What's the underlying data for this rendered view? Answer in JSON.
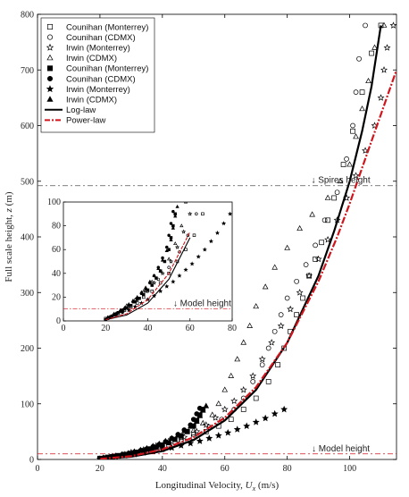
{
  "chart_data": {
    "type": "scatter",
    "xlabel_text": "Longitudinal Velocity, ",
    "xlabel_var": "U",
    "xlabel_sub": "x",
    "xlabel_unit": " (m/s)",
    "ylabel_text": "Full scale height, ",
    "ylabel_var": "z",
    "ylabel_unit": " (m)",
    "xlim": [
      0,
      115
    ],
    "ylim": [
      0,
      800
    ],
    "xticks": [
      0,
      20,
      40,
      60,
      80,
      100
    ],
    "yticks": [
      0,
      100,
      200,
      300,
      400,
      500,
      600,
      700,
      800
    ],
    "grid": false,
    "legend_position": "top-left",
    "annotations": [
      {
        "text": "↓ Spires height",
        "y": 492,
        "x_text": 100
      },
      {
        "text": "↓ Model height",
        "y": 10,
        "x_text": 100
      }
    ],
    "series": [
      {
        "name": "Counihan (Monterrey)",
        "marker": "square-open",
        "points": [
          [
            20,
            2
          ],
          [
            23,
            4
          ],
          [
            26,
            6
          ],
          [
            29,
            9
          ],
          [
            32,
            12
          ],
          [
            35,
            15
          ],
          [
            38,
            20
          ],
          [
            42,
            25
          ],
          [
            46,
            32
          ],
          [
            50,
            40
          ],
          [
            54,
            50
          ],
          [
            58,
            60
          ],
          [
            62,
            72
          ],
          [
            66,
            90
          ],
          [
            70,
            110
          ],
          [
            74,
            140
          ],
          [
            77,
            170
          ],
          [
            79,
            200
          ],
          [
            81,
            230
          ],
          [
            83,
            260
          ],
          [
            85,
            290
          ],
          [
            87,
            330
          ],
          [
            89,
            360
          ],
          [
            91,
            390
          ],
          [
            93,
            430
          ],
          [
            95,
            470
          ],
          [
            98,
            530
          ],
          [
            101,
            590
          ],
          [
            104,
            660
          ],
          [
            107,
            730
          ],
          [
            110,
            780
          ]
        ]
      },
      {
        "name": "Counihan (CDMX)",
        "marker": "circle-open",
        "points": [
          [
            21,
            2
          ],
          [
            24,
            5
          ],
          [
            27,
            8
          ],
          [
            31,
            12
          ],
          [
            35,
            18
          ],
          [
            40,
            25
          ],
          [
            45,
            35
          ],
          [
            50,
            45
          ],
          [
            55,
            58
          ],
          [
            59,
            72
          ],
          [
            63,
            90
          ],
          [
            66,
            110
          ],
          [
            69,
            140
          ],
          [
            72,
            170
          ],
          [
            74,
            200
          ],
          [
            76,
            230
          ],
          [
            78,
            260
          ],
          [
            80,
            290
          ],
          [
            83,
            320
          ],
          [
            86,
            350
          ],
          [
            89,
            385
          ],
          [
            92,
            430
          ],
          [
            96,
            480
          ],
          [
            99,
            540
          ],
          [
            101,
            600
          ],
          [
            102,
            660
          ],
          [
            103,
            720
          ],
          [
            105,
            780
          ]
        ]
      },
      {
        "name": "Irwin (Monterrey)",
        "marker": "star-open",
        "points": [
          [
            22,
            3
          ],
          [
            25,
            6
          ],
          [
            28,
            9
          ],
          [
            31,
            13
          ],
          [
            35,
            18
          ],
          [
            39,
            25
          ],
          [
            43,
            32
          ],
          [
            47,
            40
          ],
          [
            51,
            50
          ],
          [
            54,
            62
          ],
          [
            57,
            75
          ],
          [
            60,
            90
          ],
          [
            63,
            105
          ],
          [
            66,
            125
          ],
          [
            69,
            150
          ],
          [
            72,
            180
          ],
          [
            75,
            210
          ],
          [
            78,
            240
          ],
          [
            81,
            270
          ],
          [
            84,
            300
          ],
          [
            87,
            330
          ],
          [
            90,
            360
          ],
          [
            93,
            395
          ],
          [
            96,
            430
          ],
          [
            99,
            470
          ],
          [
            102,
            510
          ],
          [
            105,
            555
          ],
          [
            108,
            600
          ],
          [
            110,
            650
          ],
          [
            111,
            700
          ],
          [
            112,
            740
          ],
          [
            114,
            780
          ]
        ]
      },
      {
        "name": "Irwin (CDMX)",
        "marker": "triangle-open",
        "points": [
          [
            21,
            3
          ],
          [
            24,
            6
          ],
          [
            27,
            9
          ],
          [
            30,
            13
          ],
          [
            34,
            18
          ],
          [
            38,
            25
          ],
          [
            42,
            33
          ],
          [
            46,
            42
          ],
          [
            50,
            52
          ],
          [
            53,
            65
          ],
          [
            56,
            80
          ],
          [
            58,
            100
          ],
          [
            60,
            125
          ],
          [
            62,
            150
          ],
          [
            64,
            180
          ],
          [
            66,
            210
          ],
          [
            68,
            240
          ],
          [
            70,
            275
          ],
          [
            73,
            310
          ],
          [
            76,
            345
          ],
          [
            80,
            380
          ],
          [
            84,
            415
          ],
          [
            88,
            440
          ],
          [
            93,
            470
          ],
          [
            97,
            500
          ],
          [
            100,
            530
          ],
          [
            102,
            580
          ],
          [
            104,
            630
          ],
          [
            106,
            680
          ],
          [
            108,
            740
          ],
          [
            111,
            780
          ]
        ]
      },
      {
        "name": "Counihan (Monterrey)",
        "marker": "square-filled",
        "points": [
          [
            20,
            1
          ],
          [
            22,
            3
          ],
          [
            24,
            5
          ],
          [
            26,
            7
          ],
          [
            28,
            9
          ],
          [
            30,
            11
          ],
          [
            32,
            13
          ],
          [
            34,
            16
          ],
          [
            36,
            19
          ],
          [
            38,
            22
          ],
          [
            40,
            26
          ],
          [
            42,
            30
          ],
          [
            44,
            36
          ],
          [
            46,
            42
          ],
          [
            48,
            50
          ],
          [
            50,
            60
          ],
          [
            51,
            70
          ],
          [
            52,
            80
          ],
          [
            53,
            90
          ]
        ]
      },
      {
        "name": "Counihan (CDMX)",
        "marker": "circle-filled",
        "points": [
          [
            21,
            2
          ],
          [
            23,
            4
          ],
          [
            25,
            6
          ],
          [
            27,
            8
          ],
          [
            29,
            10
          ],
          [
            31,
            13
          ],
          [
            33,
            16
          ],
          [
            35,
            19
          ],
          [
            37,
            23
          ],
          [
            39,
            27
          ],
          [
            41,
            32
          ],
          [
            43,
            38
          ],
          [
            45,
            45
          ],
          [
            47,
            53
          ],
          [
            49,
            62
          ],
          [
            50,
            72
          ],
          [
            51,
            82
          ],
          [
            52,
            92
          ]
        ]
      },
      {
        "name": "Irwin (Monterrey)",
        "marker": "star-filled",
        "points": [
          [
            20,
            1
          ],
          [
            22,
            3
          ],
          [
            25,
            5
          ],
          [
            28,
            7
          ],
          [
            31,
            9
          ],
          [
            34,
            12
          ],
          [
            37,
            15
          ],
          [
            40,
            18
          ],
          [
            43,
            21
          ],
          [
            46,
            25
          ],
          [
            49,
            29
          ],
          [
            52,
            33
          ],
          [
            55,
            38
          ],
          [
            58,
            43
          ],
          [
            61,
            48
          ],
          [
            64,
            54
          ],
          [
            67,
            60
          ],
          [
            70,
            67
          ],
          [
            73,
            74
          ],
          [
            76,
            82
          ],
          [
            79,
            90
          ]
        ]
      },
      {
        "name": "Irwin (CDMX)",
        "marker": "triangle-filled",
        "points": [
          [
            21,
            2
          ],
          [
            23,
            4
          ],
          [
            25,
            6
          ],
          [
            27,
            8
          ],
          [
            29,
            11
          ],
          [
            31,
            14
          ],
          [
            33,
            17
          ],
          [
            35,
            20
          ],
          [
            37,
            24
          ],
          [
            39,
            28
          ],
          [
            41,
            33
          ],
          [
            43,
            38
          ],
          [
            45,
            44
          ],
          [
            47,
            51
          ],
          [
            49,
            59
          ],
          [
            51,
            68
          ],
          [
            52,
            78
          ],
          [
            53,
            88
          ],
          [
            54,
            96
          ]
        ]
      },
      {
        "name": "Log-law",
        "type": "line",
        "color": "#000000",
        "points": [
          [
            20,
            1
          ],
          [
            30,
            5
          ],
          [
            40,
            15
          ],
          [
            50,
            35
          ],
          [
            60,
            70
          ],
          [
            70,
            125
          ],
          [
            80,
            210
          ],
          [
            90,
            330
          ],
          [
            95,
            410
          ],
          [
            100,
            500
          ],
          [
            104,
            590
          ],
          [
            107,
            670
          ],
          [
            110,
            780
          ]
        ]
      },
      {
        "name": "Power-law",
        "type": "line",
        "color": "#d0151d",
        "points": [
          [
            20,
            1
          ],
          [
            30,
            6
          ],
          [
            40,
            18
          ],
          [
            50,
            40
          ],
          [
            60,
            75
          ],
          [
            70,
            130
          ],
          [
            80,
            210
          ],
          [
            90,
            320
          ],
          [
            96,
            400
          ],
          [
            100,
            460
          ],
          [
            105,
            540
          ],
          [
            110,
            620
          ],
          [
            115,
            700
          ]
        ]
      }
    ],
    "inset": {
      "xlim": [
        0,
        80
      ],
      "ylim": [
        0,
        100
      ],
      "xticks": [
        0,
        20,
        40,
        60,
        80
      ],
      "yticks": [
        0,
        20,
        40,
        60,
        80,
        100
      ],
      "annotation": {
        "text": "↓ Model height",
        "y": 10,
        "x_text": 52
      }
    }
  }
}
